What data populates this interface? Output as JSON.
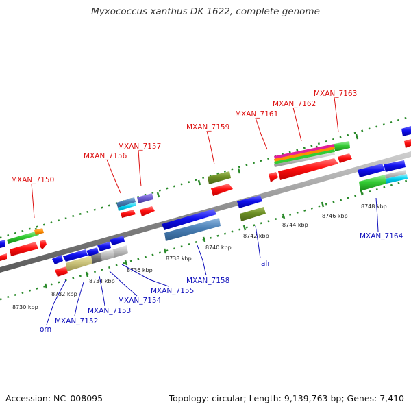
{
  "title": "Myxococcus xanthus DK 1622, complete genome",
  "footer": {
    "accession": "Accession: NC_008095",
    "stats": "Topology: circular; Length: 9,139,763 bp; Genes: 7,410"
  },
  "colors": {
    "backbone": "#8a8a8a",
    "ticks": "#2a8a2a",
    "forward_label": "#dd1111",
    "reverse_label": "#1111bb",
    "gene_red": "#ff1111",
    "gene_blue": "#1111ee",
    "gene_green": "#33cc33",
    "gene_olive": "#6b8e23",
    "gene_steel": "#4a7fb5",
    "gene_gray": "#bbbbbb",
    "gene_khaki": "#c8c078",
    "gene_purple": "#6a5acd",
    "gene_cyan": "#00d0f0",
    "gene_orange": "#ff8c00",
    "gene_magenta": "#e0209a"
  },
  "kbp_labels": [
    "8730 kbp",
    "8732 kbp",
    "8734 kbp",
    "8736 kbp",
    "8738 kbp",
    "8740 kbp",
    "8742 kbp",
    "8744 kbp",
    "8746 kbp",
    "8748 kbp"
  ],
  "forward_labels": [
    "MXAN_7150",
    "MXAN_7156",
    "MXAN_7157",
    "MXAN_7159",
    "MXAN_7161",
    "MXAN_7162",
    "MXAN_7163"
  ],
  "reverse_labels": [
    "orn",
    "MXAN_7152",
    "MXAN_7153",
    "MXAN_7154",
    "MXAN_7155",
    "MXAN_7158",
    "alr",
    "MXAN_7164"
  ]
}
